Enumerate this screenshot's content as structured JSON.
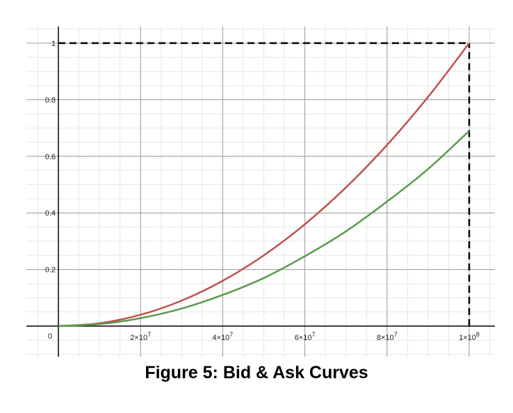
{
  "chart_data": {
    "type": "line",
    "title": "",
    "xlabel": "",
    "ylabel": "",
    "xlim": [
      0,
      100000000
    ],
    "ylim": [
      0,
      1
    ],
    "grid": true,
    "x_ticks": [
      {
        "value": 20000000,
        "mantissa": "2",
        "exponent": "7"
      },
      {
        "value": 40000000,
        "mantissa": "4",
        "exponent": "7"
      },
      {
        "value": 60000000,
        "mantissa": "6",
        "exponent": "7"
      },
      {
        "value": 80000000,
        "mantissa": "8",
        "exponent": "7"
      },
      {
        "value": 100000000,
        "mantissa": "1",
        "exponent": "8"
      }
    ],
    "y_ticks": [
      {
        "value": 0.2,
        "label": "0.2"
      },
      {
        "value": 0.4,
        "label": "0.4"
      },
      {
        "value": 0.6,
        "label": "0.6"
      },
      {
        "value": 0.8,
        "label": "0.8"
      },
      {
        "value": 1,
        "label": "1"
      }
    ],
    "origin_label": "0",
    "series": [
      {
        "color": "#c0504d",
        "x": [
          0,
          10000000,
          20000000,
          30000000,
          40000000,
          50000000,
          60000000,
          70000000,
          80000000,
          90000000,
          100000000
        ],
        "y": [
          0,
          0.01,
          0.04,
          0.09,
          0.16,
          0.25,
          0.36,
          0.49,
          0.64,
          0.81,
          1.0
        ]
      },
      {
        "color": "#5a9a4e",
        "x": [
          0,
          10000000,
          20000000,
          30000000,
          40000000,
          50000000,
          60000000,
          70000000,
          80000000,
          90000000,
          100000000
        ],
        "y": [
          0,
          0.007,
          0.028,
          0.062,
          0.11,
          0.17,
          0.247,
          0.335,
          0.44,
          0.555,
          0.69
        ]
      }
    ],
    "reference_lines": [
      {
        "type": "horizontal",
        "y": 1,
        "from_x": 0,
        "to_x": 100000000,
        "style": "dashed",
        "color": "#000000"
      },
      {
        "type": "vertical",
        "x": 100000000,
        "from_y": 0,
        "to_y": 1,
        "style": "dashed",
        "color": "#000000"
      }
    ]
  },
  "caption": "Figure 5: Bid & Ask Curves"
}
